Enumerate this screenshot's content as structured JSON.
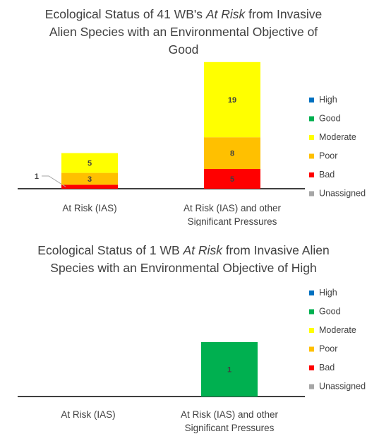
{
  "colors": {
    "High": "#0070C0",
    "Good": "#00B050",
    "Moderate": "#FFFF00",
    "Poor": "#FFC000",
    "Bad": "#FF0000",
    "Unassigned": "#A6A6A6"
  },
  "chart_data": [
    {
      "type": "bar",
      "stacked": true,
      "title_parts": [
        [
          {
            "t": "Ecological Status of 41 WB's ",
            "i": false
          },
          {
            "t": "At Risk",
            "i": true
          },
          {
            "t": " from Invasive",
            "i": false
          }
        ],
        [
          {
            "t": "Alien Species with an Environmental Objective of",
            "i": false
          }
        ],
        [
          {
            "t": "Good",
            "i": false
          }
        ]
      ],
      "categories": [
        [
          "At Risk (IAS)"
        ],
        [
          "At Risk (IAS) and other",
          "Significant Pressures"
        ]
      ],
      "series": [
        {
          "name": "High",
          "values": [
            0,
            0
          ]
        },
        {
          "name": "Good",
          "values": [
            0,
            0
          ]
        },
        {
          "name": "Moderate",
          "values": [
            5,
            19
          ]
        },
        {
          "name": "Poor",
          "values": [
            3,
            8
          ]
        },
        {
          "name": "Bad",
          "values": [
            1,
            5
          ]
        },
        {
          "name": "Unassigned",
          "values": [
            0,
            0
          ]
        }
      ],
      "legend_position": "right",
      "grid": false
    },
    {
      "type": "bar",
      "stacked": true,
      "title_parts": [
        [
          {
            "t": "Ecological Status of 1 WB ",
            "i": false
          },
          {
            "t": "At Risk",
            "i": true
          },
          {
            "t": " from Invasive Alien",
            "i": false
          }
        ],
        [
          {
            "t": "Species with an Environmental Objective of High",
            "i": false
          }
        ]
      ],
      "categories": [
        [
          "At Risk (IAS)"
        ],
        [
          "At Risk (IAS) and other",
          "Significant Pressures"
        ]
      ],
      "series": [
        {
          "name": "High",
          "values": [
            0,
            0
          ]
        },
        {
          "name": "Good",
          "values": [
            0,
            1
          ]
        },
        {
          "name": "Moderate",
          "values": [
            0,
            0
          ]
        },
        {
          "name": "Poor",
          "values": [
            0,
            0
          ]
        },
        {
          "name": "Bad",
          "values": [
            0,
            0
          ]
        },
        {
          "name": "Unassigned",
          "values": [
            0,
            0
          ]
        }
      ],
      "legend_position": "right",
      "grid": false
    }
  ]
}
